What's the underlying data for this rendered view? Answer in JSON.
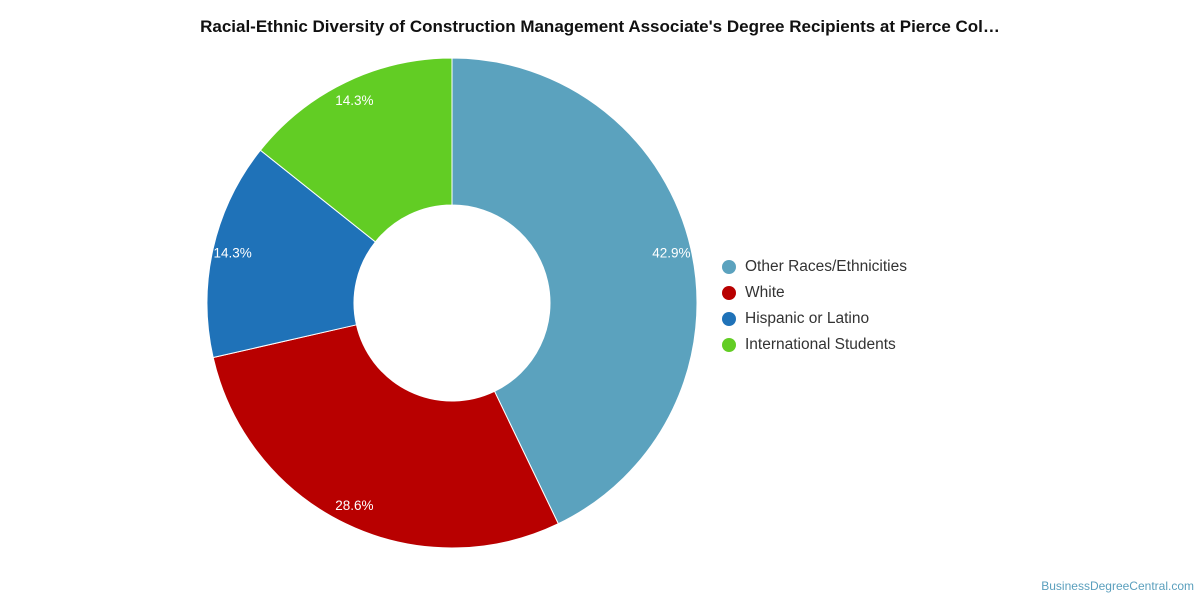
{
  "chart_data": {
    "type": "pie",
    "title": "Racial-Ethnic Diversity of Construction Management Associate's Degree Recipients at Pierce Col…",
    "series": [
      {
        "name": "Other Races/Ethnicities",
        "value": 42.9,
        "label": "42.9%",
        "color": "#5ba2be"
      },
      {
        "name": "White",
        "value": 28.6,
        "label": "28.6%",
        "color": "#b80000"
      },
      {
        "name": "Hispanic or Latino",
        "value": 14.3,
        "label": "14.3%",
        "color": "#1f72b8"
      },
      {
        "name": "International Students",
        "value": 14.3,
        "label": "14.3%",
        "color": "#62cd24"
      }
    ],
    "donut": true,
    "legend_position": "right"
  },
  "watermark": "BusinessDegreeCentral.com"
}
